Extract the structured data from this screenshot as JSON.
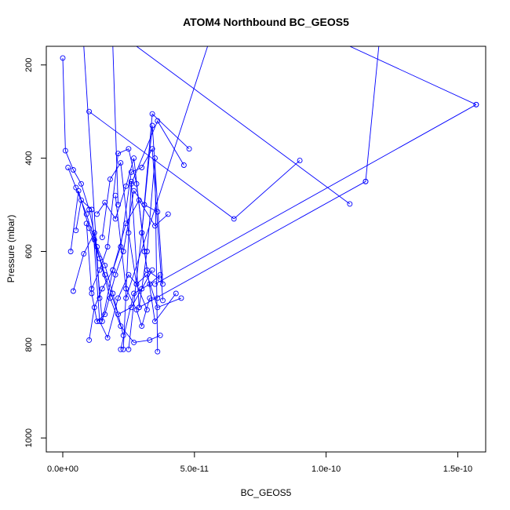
{
  "chart_data": {
    "type": "line",
    "title": "ATOM4 Northbound BC_GEOS5",
    "xlabel": "BC_GEOS5",
    "ylabel": "Pressure (mbar)",
    "xlim": [
      0,
      1.6e-10
    ],
    "ylim": [
      1030,
      160
    ],
    "y_reversed": true,
    "x_ticks": [
      0,
      5e-11,
      1e-10,
      1.5e-10
    ],
    "x_tick_labels": [
      "0.0e+00",
      "5.0e-11",
      "1.0e-10",
      "1.5e-10"
    ],
    "y_ticks": [
      200,
      400,
      600,
      800,
      1000
    ],
    "y_tick_labels": [
      "200",
      "400",
      "600",
      "800",
      "1000"
    ],
    "grid": false,
    "color": "#0000ff",
    "marker": "open-circle",
    "series": [
      {
        "x": [
          0.0,
          1e-12,
          4e-12,
          7e-12,
          1e-11,
          1.3e-11,
          1.6e-11,
          1.9e-11,
          2.3e-11
        ],
        "y": [
          185,
          384,
          425,
          455,
          510,
          590,
          630,
          690,
          780
        ]
      },
      {
        "x": [
          2e-12,
          5e-12,
          9e-12,
          1.2e-11,
          1.6e-11,
          2.1e-11,
          2.6e-11,
          3e-11,
          3.4e-11
        ],
        "y": [
          420,
          463,
          520,
          575,
          650,
          735,
          720,
          680,
          640
        ]
      },
      {
        "x": [
          3e-12,
          6e-12,
          1e-11,
          1.4e-11,
          1.8e-11,
          2.2e-11,
          2.7e-11,
          3.3e-11,
          3.7e-11
        ],
        "y": [
          600,
          470,
          550,
          615,
          700,
          760,
          795,
          790,
          780
        ]
      },
      {
        "x": [
          4e-12,
          8e-12,
          1.2e-11,
          1.5e-11,
          1.9e-11,
          2.4e-11,
          2.9e-11,
          3.5e-11,
          4e-11
        ],
        "y": [
          685,
          605,
          560,
          750,
          640,
          540,
          490,
          545,
          520
        ]
      },
      {
        "x": [
          5e-12,
          7e-12,
          1.1e-11,
          1.4e-11,
          1.7e-11,
          2.1e-11,
          2.5e-11,
          2.8e-11,
          3.2e-11
        ],
        "y": [
          555,
          490,
          510,
          750,
          785,
          700,
          650,
          670,
          725
        ]
      },
      {
        "x": [
          9e-12,
          1.1e-11,
          1.3e-11,
          1.6e-11,
          2e-11,
          2.3e-11,
          2.7e-11,
          3.1e-11,
          3.6e-11
        ],
        "y": [
          540,
          690,
          750,
          735,
          650,
          600,
          470,
          500,
          515
        ]
      },
      {
        "x": [
          1e-11,
          1.2e-11,
          1.5e-11,
          1.9e-11,
          2.2e-11,
          2.6e-11,
          3e-11,
          3.4e-11,
          3.8e-11
        ],
        "y": [
          790,
          720,
          680,
          640,
          590,
          430,
          420,
          380,
          705
        ]
      },
      {
        "x": [
          1.1e-11,
          1.4e-11,
          1.7e-11,
          2.1e-11,
          2.5e-11,
          2.8e-11,
          3.2e-11,
          3.7e-11
        ],
        "y": [
          680,
          640,
          590,
          390,
          380,
          455,
          640,
          660
        ]
      },
      {
        "x": [
          1.3e-11,
          1.6e-11,
          2e-11,
          2.4e-11,
          2.7e-11,
          3.1e-11,
          3.5e-11,
          4.3e-11
        ],
        "y": [
          520,
          495,
          530,
          460,
          400,
          600,
          750,
          690
        ]
      },
      {
        "x": [
          1.5e-11,
          1.8e-11,
          2.2e-11,
          2.5e-11,
          2.8e-11,
          3.2e-11,
          3.6e-11,
          4.5e-11
        ],
        "y": [
          570,
          445,
          410,
          560,
          670,
          650,
          720,
          700
        ]
      },
      {
        "x": [
          2e-11,
          2.4e-11,
          2.8e-11,
          3e-11,
          3.3e-11,
          3.6e-11
        ],
        "y": [
          480,
          680,
          725,
          760,
          700,
          700
        ]
      },
      {
        "x": [
          2.3e-11,
          2.6e-11,
          2.9e-11,
          3.2e-11,
          3.5e-11,
          3.6e-11
        ],
        "y": [
          810,
          450,
          720,
          600,
          400,
          815
        ]
      },
      {
        "x": [
          2.2e-11,
          2.7e-11,
          3.3e-11,
          3.7e-11
        ],
        "y": [
          810,
          690,
          670,
          650
        ]
      },
      {
        "x": [
          2.5e-11,
          3e-11,
          3.4e-11,
          3.8e-11
        ],
        "y": [
          810,
          560,
          330,
          670
        ]
      },
      {
        "x": [
          3e-11,
          3.4e-11,
          4.8e-11
        ],
        "y": [
          560,
          305,
          380
        ]
      },
      {
        "x": [
          2.6e-11,
          3.6e-11,
          4.6e-11
        ],
        "y": [
          455,
          320,
          415
        ]
      },
      {
        "x": [
          1e-11,
          6.5e-11,
          9e-11
        ],
        "y": [
          300,
          530,
          405
        ]
      },
      {
        "x": [
          2.8e-11,
          1.09e-10
        ],
        "y": [
          160,
          498
        ]
      },
      {
        "x": [
          2.9e-11,
          1.15e-10
        ],
        "y": [
          720,
          450
        ]
      },
      {
        "x": [
          3.5e-11,
          1.57e-10
        ],
        "y": [
          670,
          285
        ]
      },
      {
        "x": [
          1.57e-10,
          1.09e-10
        ],
        "y": [
          285,
          160
        ]
      },
      {
        "x": [
          1.15e-10,
          1.2e-10
        ],
        "y": [
          450,
          160
        ]
      },
      {
        "x": [
          2.4e-11,
          5.5e-11
        ],
        "y": [
          700,
          160
        ]
      },
      {
        "x": [
          8e-12,
          1.4e-11
        ],
        "y": [
          160,
          700
        ]
      },
      {
        "x": [
          1.9e-11,
          2.1e-11
        ],
        "y": [
          160,
          500
        ]
      }
    ]
  }
}
